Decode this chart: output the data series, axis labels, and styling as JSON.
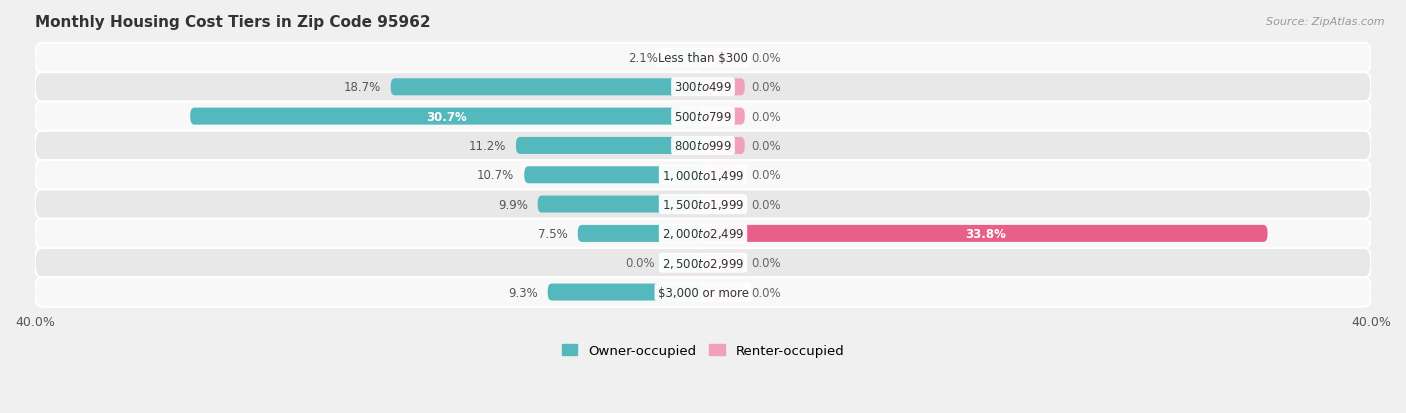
{
  "title": "Monthly Housing Cost Tiers in Zip Code 95962",
  "source": "Source: ZipAtlas.com",
  "categories": [
    "Less than $300",
    "$300 to $499",
    "$500 to $799",
    "$800 to $999",
    "$1,000 to $1,499",
    "$1,500 to $1,999",
    "$2,000 to $2,499",
    "$2,500 to $2,999",
    "$3,000 or more"
  ],
  "owner_values": [
    2.1,
    18.7,
    30.7,
    11.2,
    10.7,
    9.9,
    7.5,
    0.0,
    9.3
  ],
  "renter_values": [
    0.0,
    0.0,
    0.0,
    0.0,
    0.0,
    0.0,
    33.8,
    0.0,
    0.0
  ],
  "owner_color": "#54b8bc",
  "renter_color_full": "#e8608a",
  "renter_color_stub": "#f0a0bc",
  "owner_color_stub": "#90d0d4",
  "axis_limit": 40.0,
  "bg_color": "#f0f0f0",
  "row_bg_light": "#f8f8f8",
  "row_bg_dark": "#e8e8e8",
  "stub_size": 2.5,
  "label_fontsize": 8.5,
  "title_fontsize": 11
}
